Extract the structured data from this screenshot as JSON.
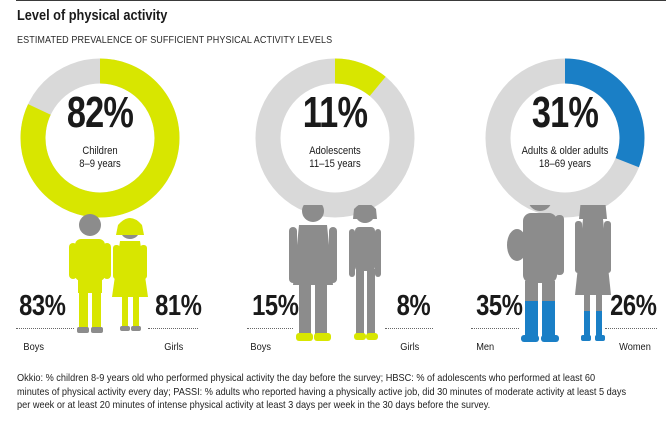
{
  "header": {
    "title": "Level of physical activity",
    "subtitle": "ESTIMATED PREVALENCE OF SUFFICIENT PHYSICAL ACTIVITY LEVELS"
  },
  "colors": {
    "track": "#d9d9d9",
    "children": "#d8e600",
    "adolescents": "#d8e600",
    "adults": "#1a7fc6",
    "figure_grey": "#8c8c8c",
    "figure_lime": "#d8e600",
    "figure_blue": "#1a7fc6"
  },
  "panels": [
    {
      "percent": "82%",
      "label1": "Children",
      "label2": "8–9 years",
      "left": {
        "percent": "83%",
        "label": "Boys"
      },
      "right": {
        "percent": "81%",
        "label": "Girls"
      }
    },
    {
      "percent": "11%",
      "label1": "Adolescents",
      "label2": "11–15 years",
      "left": {
        "percent": "15%",
        "label": "Boys"
      },
      "right": {
        "percent": "8%",
        "label": "Girls"
      }
    },
    {
      "percent": "31%",
      "label1": "Adults & older adults",
      "label2": "18–69 years",
      "left": {
        "percent": "35%",
        "label": "Men"
      },
      "right": {
        "percent": "26%",
        "label": "Women"
      }
    }
  ],
  "chart_data": {
    "type": "pie",
    "title": "Level of physical activity",
    "subtitle": "ESTIMATED PREVALENCE OF SUFFICIENT PHYSICAL ACTIVITY LEVELS",
    "series": [
      {
        "name": "Children 8–9 years",
        "value": 82,
        "subgroups": {
          "Boys": 83,
          "Girls": 81
        }
      },
      {
        "name": "Adolescents 11–15 years",
        "value": 11,
        "subgroups": {
          "Boys": 15,
          "Girls": 8
        }
      },
      {
        "name": "Adults & older adults 18–69 years",
        "value": 31,
        "subgroups": {
          "Men": 35,
          "Women": 26
        }
      }
    ],
    "unit": "%"
  },
  "footnote": "Okkio: % children 8-9 years  old who performed physical activity the day before the survey; HBSC: % of adolescents who performed at least 60 minutes of physical activity every day; PASSI: % adults who reported having a physically active job, did 30 minutes of moderate activity at least 5 days per week or at least 20 minutes of intense physical activity at least 3 days per week in the 30 days before the survey."
}
